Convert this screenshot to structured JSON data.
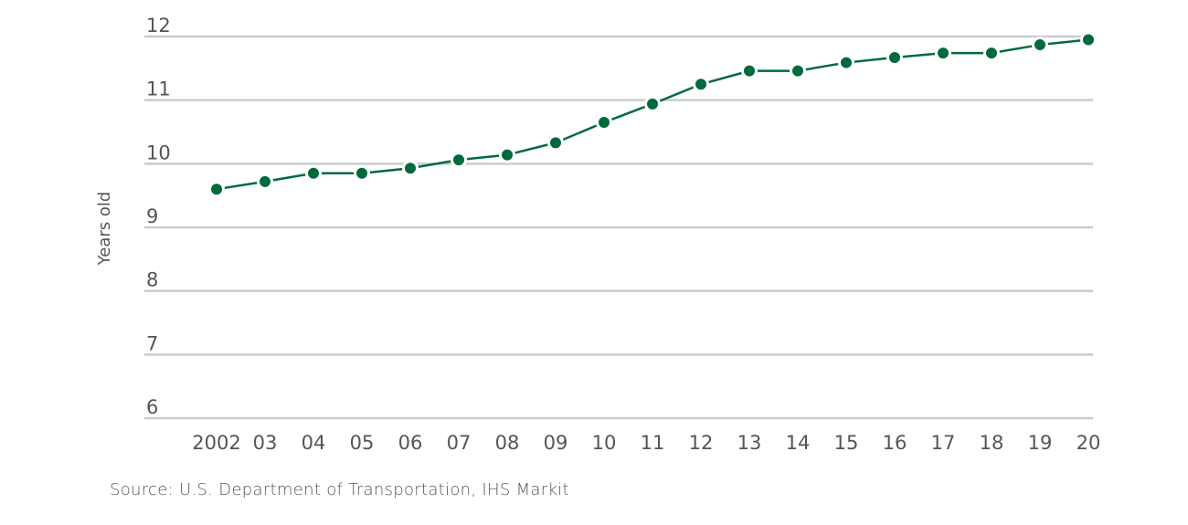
{
  "chart_data": {
    "type": "line",
    "title": "",
    "xlabel": "",
    "ylabel": "Years old",
    "categories": [
      "2002",
      "03",
      "04",
      "05",
      "06",
      "07",
      "08",
      "09",
      "10",
      "11",
      "12",
      "13",
      "14",
      "15",
      "16",
      "17",
      "18",
      "19",
      "20"
    ],
    "series": [
      {
        "values": [
          9.6,
          9.72,
          9.85,
          9.85,
          9.93,
          10.06,
          10.14,
          10.33,
          10.65,
          10.94,
          11.25,
          11.46,
          11.46,
          11.59,
          11.67,
          11.74,
          11.74,
          11.87,
          11.95
        ]
      }
    ],
    "ylim": [
      6,
      12
    ],
    "yticks": [
      6,
      7,
      8,
      9,
      10,
      11,
      12
    ],
    "grid": "horizontal",
    "legend": "none",
    "colors": {
      "line": "#006a3d",
      "grid": "#c8cccc",
      "text": "#555555"
    }
  },
  "source": "Source: U.S. Department of Transportation, IHS Markit"
}
